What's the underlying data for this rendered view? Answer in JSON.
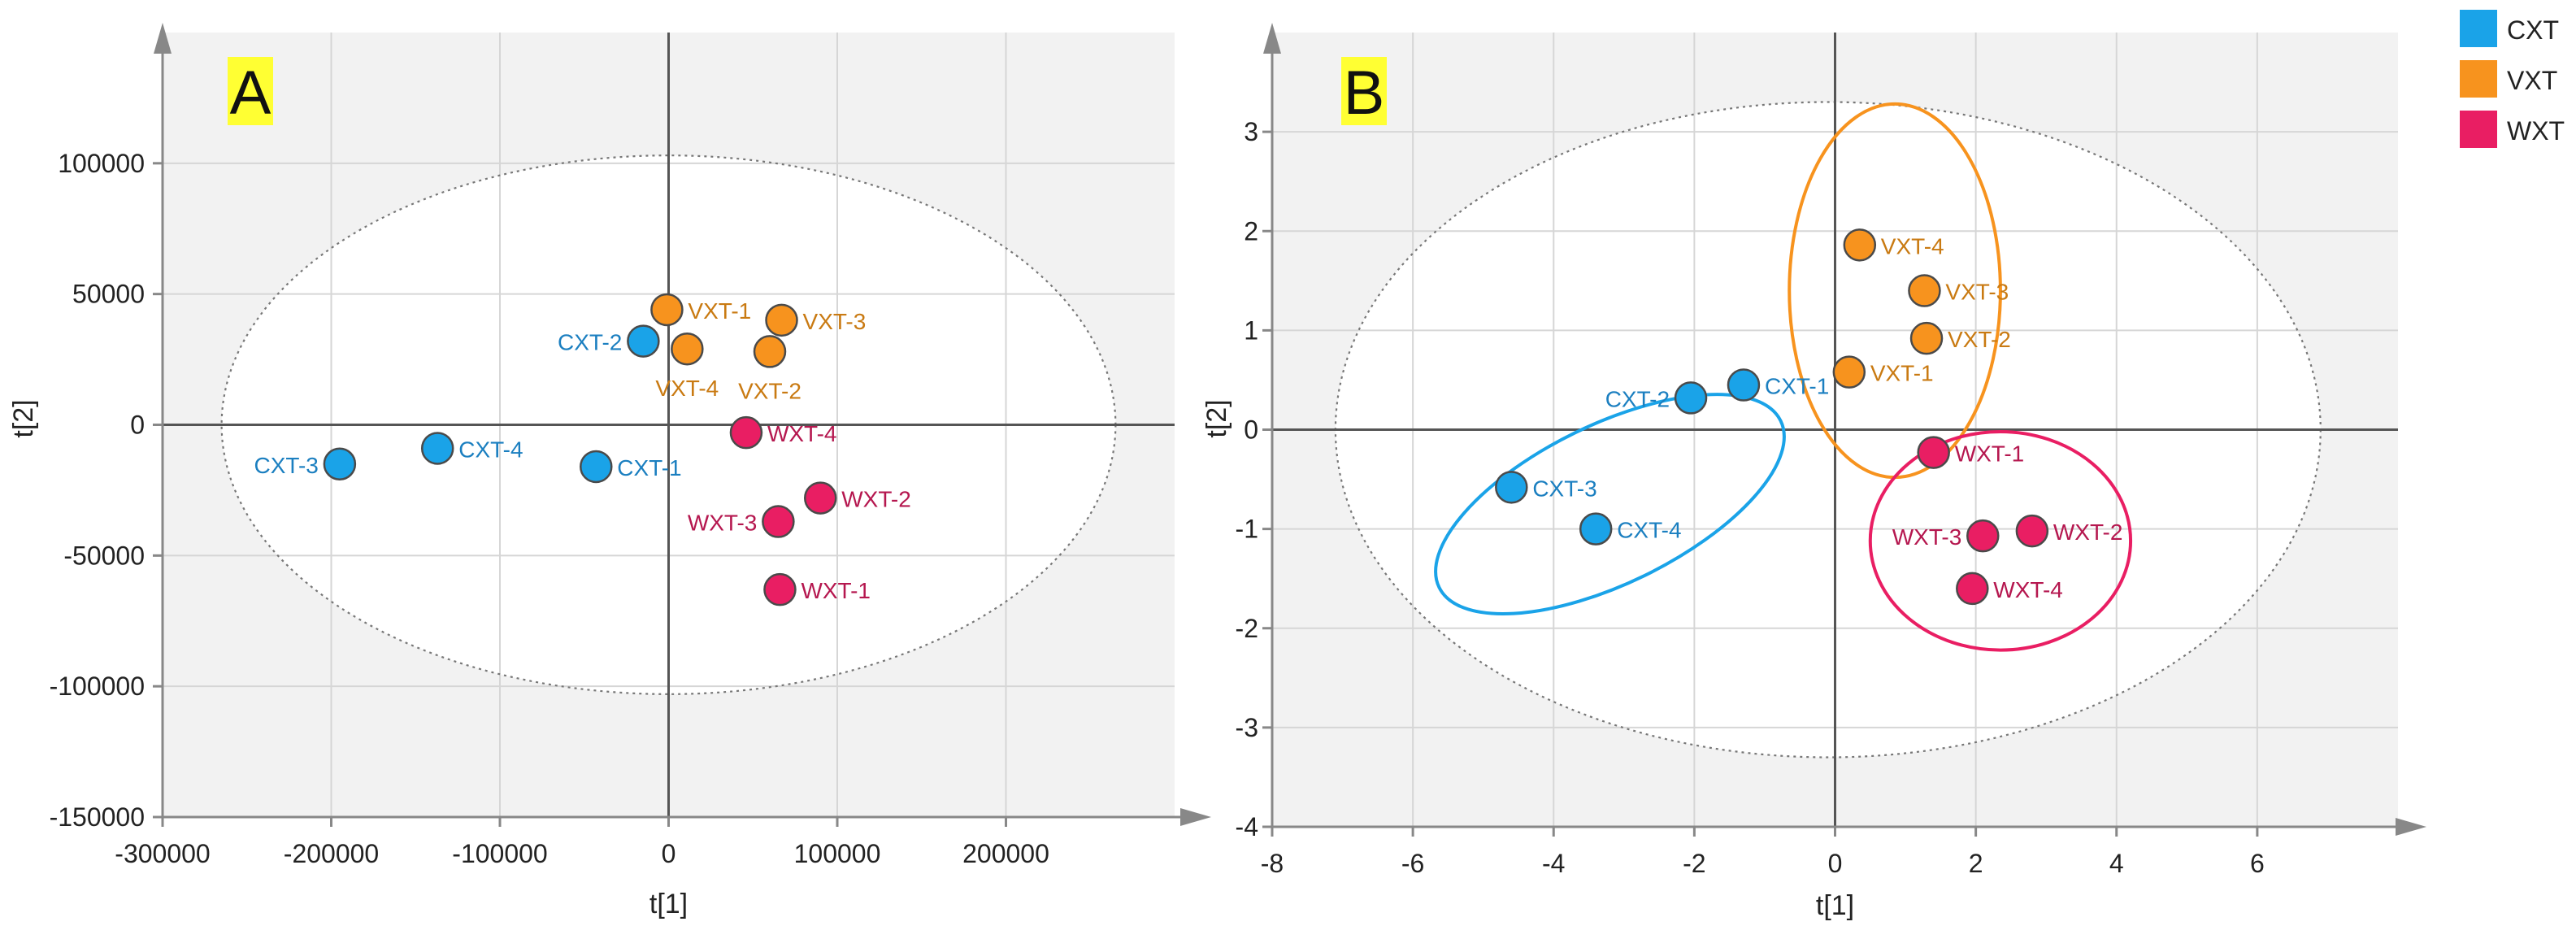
{
  "chart_data": [
    {
      "type": "scatter",
      "panel_label": "A",
      "xlabel": "t[1]",
      "ylabel": "t[2]",
      "xlim": [
        -300000,
        300000
      ],
      "ylim": [
        -150000,
        150000
      ],
      "x_ticks": [
        -300000,
        -200000,
        -100000,
        0,
        100000,
        200000
      ],
      "x_tick_labels": [
        "-300000",
        "-200000",
        "-100000",
        "0",
        "100000",
        "200000"
      ],
      "y_ticks": [
        -150000,
        -100000,
        -50000,
        0,
        50000,
        100000
      ],
      "y_tick_labels": [
        "-150000",
        "-100000",
        "-50000",
        "0",
        "50000",
        "100000"
      ],
      "grid": true,
      "ellipse": {
        "cx": 0,
        "cy": 0,
        "rx": 265000,
        "ry": 103000
      },
      "series": [
        {
          "name": "CXT",
          "color": "#1aa3e8",
          "label_color": "#1b7fc0",
          "points": [
            {
              "label": "CXT-1",
              "x": -43000,
              "y": -16000,
              "side": "right"
            },
            {
              "label": "CXT-2",
              "x": -15000,
              "y": 32000,
              "side": "left"
            },
            {
              "label": "CXT-3",
              "x": -195000,
              "y": -15000,
              "side": "left"
            },
            {
              "label": "CXT-4",
              "x": -137000,
              "y": -9000,
              "side": "right"
            }
          ]
        },
        {
          "name": "VXT",
          "color": "#f7931e",
          "label_color": "#c97a12",
          "points": [
            {
              "label": "VXT-1",
              "x": -1000,
              "y": 44000,
              "side": "right"
            },
            {
              "label": "VXT-2",
              "x": 60000,
              "y": 28000,
              "side": "below"
            },
            {
              "label": "VXT-3",
              "x": 67000,
              "y": 40000,
              "side": "right"
            },
            {
              "label": "VXT-4",
              "x": 11000,
              "y": 29000,
              "side": "below"
            }
          ]
        },
        {
          "name": "WXT",
          "color": "#e91e63",
          "label_color": "#b5174f",
          "points": [
            {
              "label": "WXT-1",
              "x": 66000,
              "y": -63000,
              "side": "right"
            },
            {
              "label": "WXT-2",
              "x": 90000,
              "y": -28000,
              "side": "right"
            },
            {
              "label": "WXT-3",
              "x": 65000,
              "y": -37000,
              "side": "left"
            },
            {
              "label": "WXT-4",
              "x": 46000,
              "y": -3000,
              "side": "right"
            }
          ]
        }
      ]
    },
    {
      "type": "scatter",
      "panel_label": "B",
      "xlabel": "t[1]",
      "ylabel": "t[2]",
      "xlim": [
        -8,
        8
      ],
      "ylim": [
        -4,
        4
      ],
      "x_ticks": [
        -8,
        -6,
        -4,
        -2,
        0,
        2,
        4,
        6
      ],
      "x_tick_labels": [
        "-8",
        "-6",
        "-4",
        "-2",
        "0",
        "2",
        "4",
        "6"
      ],
      "y_ticks": [
        -4,
        -3,
        -2,
        -1,
        0,
        1,
        2,
        3
      ],
      "y_tick_labels": [
        "-4",
        "-3",
        "-2",
        "-1",
        "0",
        "1",
        "2",
        "3"
      ],
      "grid": true,
      "ellipse": {
        "cx": -0.1,
        "cy": 0,
        "rx": 7.0,
        "ry": 3.3
      },
      "group_ellipses": [
        {
          "name": "CXT",
          "color": "#1aa3e8",
          "cx": -3.2,
          "cy": -0.75,
          "rx": 2.7,
          "ry": 0.8,
          "angle_deg": 26
        },
        {
          "name": "VXT",
          "color": "#f7931e",
          "cx": 0.85,
          "cy": 1.4,
          "rx": 1.5,
          "ry": 1.88,
          "angle_deg": 0
        },
        {
          "name": "WXT",
          "color": "#e91e63",
          "cx": 2.35,
          "cy": -1.12,
          "rx": 1.85,
          "ry": 1.1,
          "angle_deg": 0
        }
      ],
      "series": [
        {
          "name": "CXT",
          "color": "#1aa3e8",
          "label_color": "#1b7fc0",
          "points": [
            {
              "label": "CXT-1",
              "x": -1.3,
              "y": 0.45,
              "side": "right"
            },
            {
              "label": "CXT-2",
              "x": -2.05,
              "y": 0.32,
              "side": "left"
            },
            {
              "label": "CXT-3",
              "x": -4.6,
              "y": -0.58,
              "side": "right"
            },
            {
              "label": "CXT-4",
              "x": -3.4,
              "y": -1.0,
              "side": "right"
            }
          ]
        },
        {
          "name": "VXT",
          "color": "#f7931e",
          "label_color": "#c97a12",
          "points": [
            {
              "label": "VXT-1",
              "x": 0.2,
              "y": 0.58,
              "side": "right"
            },
            {
              "label": "VXT-2",
              "x": 1.3,
              "y": 0.92,
              "side": "right"
            },
            {
              "label": "VXT-3",
              "x": 1.27,
              "y": 1.4,
              "side": "right"
            },
            {
              "label": "VXT-4",
              "x": 0.35,
              "y": 1.86,
              "side": "right"
            }
          ]
        },
        {
          "name": "WXT",
          "color": "#e91e63",
          "label_color": "#b5174f",
          "points": [
            {
              "label": "WXT-1",
              "x": 1.4,
              "y": -0.23,
              "side": "right"
            },
            {
              "label": "WXT-2",
              "x": 2.8,
              "y": -1.02,
              "side": "right"
            },
            {
              "label": "WXT-3",
              "x": 2.1,
              "y": -1.07,
              "side": "left"
            },
            {
              "label": "WXT-4",
              "x": 1.95,
              "y": -1.6,
              "side": "right"
            }
          ]
        }
      ]
    }
  ],
  "legend": {
    "position": "top-right",
    "entries": [
      {
        "label": "CXT",
        "color": "#1aa3e8"
      },
      {
        "label": "VXT",
        "color": "#f7931e"
      },
      {
        "label": "WXT",
        "color": "#e91e63"
      }
    ]
  }
}
